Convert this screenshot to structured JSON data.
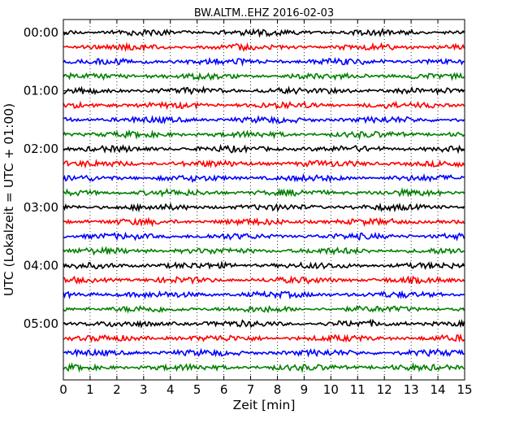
{
  "chart_data": {
    "type": "line",
    "title": "BW.ALTM..EHZ 2016-02-03",
    "xlabel": "Zeit  [min]",
    "ylabel": "UTC (Lokalzeit = UTC + 01:00)",
    "xlim": [
      0,
      15
    ],
    "x_ticks": [
      "0",
      "1",
      "2",
      "3",
      "4",
      "5",
      "6",
      "7",
      "8",
      "9",
      "10",
      "11",
      "12",
      "13",
      "14",
      "15"
    ],
    "y_ticks": [
      "00:00",
      "01:00",
      "02:00",
      "03:00",
      "04:00",
      "05:00"
    ],
    "trace_interval_minutes": 15,
    "trace_count": 24,
    "color_cycle": [
      "#000000",
      "#ff0000",
      "#0000ff",
      "#008000"
    ],
    "grid": "vertical dotted at each minute"
  }
}
